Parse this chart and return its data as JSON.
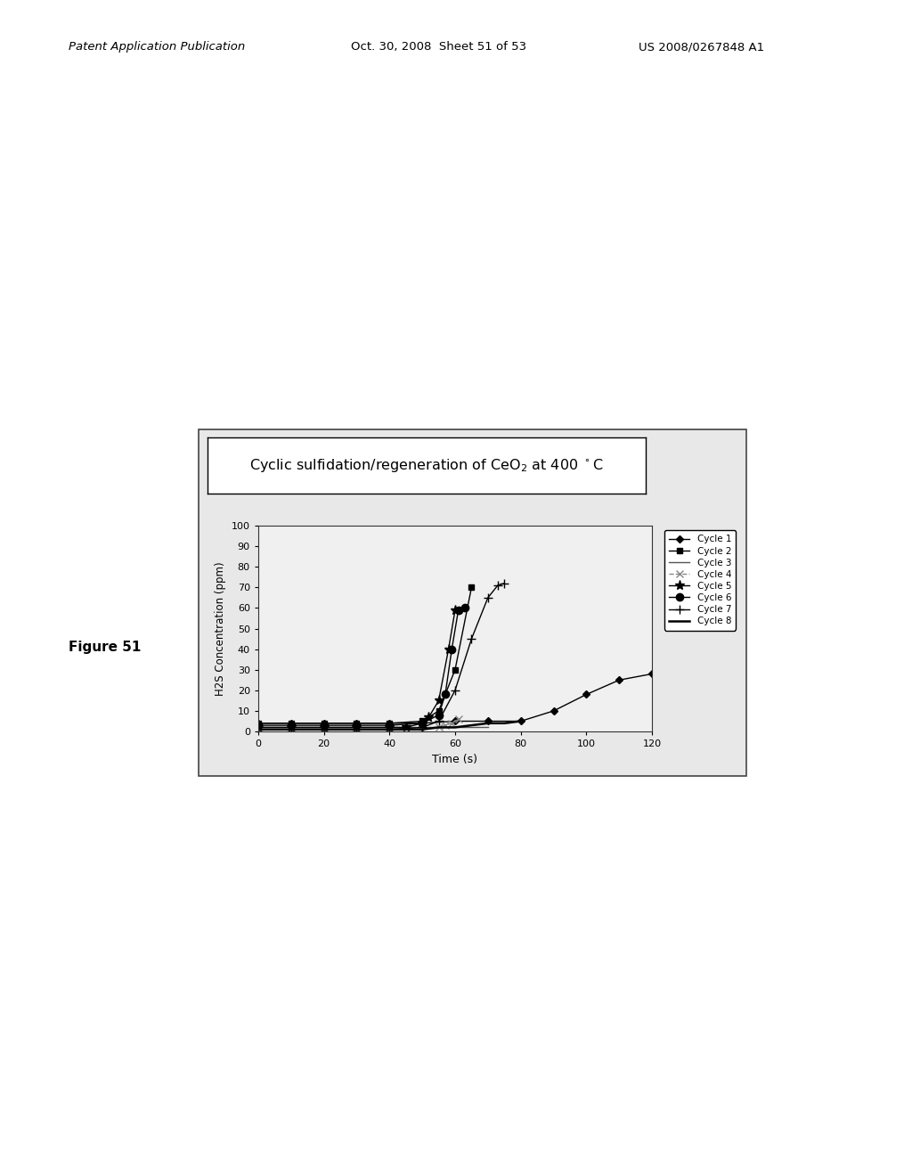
{
  "header_left": "Patent Application Publication",
  "header_center": "Oct. 30, 2008  Sheet 51 of 53",
  "header_right": "US 2008/0267848 A1",
  "figure_label": "Figure 51",
  "title": "Cyclic sulfidation/regeneration of CeO$_2$ at 400 $^\\circ$C",
  "xlabel": "Time (s)",
  "ylabel": "H2S Concentration (ppm)",
  "xlim": [
    0,
    120
  ],
  "ylim": [
    0,
    100
  ],
  "xticks": [
    0,
    20,
    40,
    60,
    80,
    100,
    120
  ],
  "yticks": [
    0,
    10,
    20,
    30,
    40,
    50,
    60,
    70,
    80,
    90,
    100
  ],
  "cycles": {
    "Cycle 1": {
      "x": [
        0,
        10,
        20,
        30,
        40,
        50,
        60,
        70,
        80,
        90,
        100,
        110,
        120
      ],
      "y": [
        4,
        4,
        4,
        4,
        4,
        4,
        5,
        5,
        5,
        10,
        18,
        25,
        28
      ],
      "color": "#000000",
      "marker": "D",
      "markersize": 4,
      "linestyle": "-",
      "linewidth": 1.0
    },
    "Cycle 2": {
      "x": [
        0,
        10,
        20,
        30,
        40,
        50,
        55,
        60,
        65
      ],
      "y": [
        4,
        4,
        4,
        4,
        4,
        5,
        10,
        30,
        70
      ],
      "color": "#000000",
      "marker": "s",
      "markersize": 5,
      "linestyle": "-",
      "linewidth": 1.0
    },
    "Cycle 3": {
      "x": [
        0,
        10,
        20,
        30,
        40,
        50,
        55,
        60,
        65,
        70
      ],
      "y": [
        2,
        2,
        2,
        2,
        2,
        2,
        2,
        2,
        2,
        2
      ],
      "color": "#555555",
      "marker": "None",
      "markersize": 0,
      "linestyle": "-",
      "linewidth": 1.0
    },
    "Cycle 4": {
      "x": [
        0,
        10,
        20,
        30,
        40,
        50,
        55,
        57,
        59,
        61
      ],
      "y": [
        1,
        1,
        1,
        1,
        1,
        1,
        2,
        3,
        4,
        6
      ],
      "color": "#888888",
      "marker": "x",
      "markersize": 6,
      "linestyle": "--",
      "linewidth": 1.0
    },
    "Cycle 5": {
      "x": [
        0,
        10,
        20,
        30,
        40,
        45,
        50,
        52,
        55,
        58,
        60
      ],
      "y": [
        2,
        2,
        2,
        2,
        2,
        2,
        4,
        7,
        15,
        40,
        59
      ],
      "color": "#000000",
      "marker": "*",
      "markersize": 8,
      "linestyle": "-",
      "linewidth": 1.0
    },
    "Cycle 6": {
      "x": [
        0,
        10,
        20,
        30,
        40,
        50,
        55,
        57,
        59,
        61,
        63
      ],
      "y": [
        3,
        3,
        3,
        3,
        3,
        4,
        8,
        18,
        40,
        59,
        60
      ],
      "color": "#000000",
      "marker": "o",
      "markersize": 6,
      "linestyle": "-",
      "linewidth": 1.0
    },
    "Cycle 7": {
      "x": [
        0,
        10,
        20,
        30,
        40,
        50,
        55,
        60,
        65,
        70,
        73,
        75
      ],
      "y": [
        1,
        1,
        1,
        1,
        1,
        2,
        5,
        20,
        45,
        65,
        71,
        72
      ],
      "color": "#000000",
      "marker": "+",
      "markersize": 7,
      "linestyle": "-",
      "linewidth": 1.0
    },
    "Cycle 8": {
      "x": [
        0,
        10,
        20,
        30,
        40,
        50,
        55,
        60,
        65,
        70,
        75,
        80
      ],
      "y": [
        1,
        1,
        1,
        1,
        1,
        1,
        2,
        2,
        3,
        4,
        4,
        5
      ],
      "color": "#000000",
      "marker": "None",
      "markersize": 0,
      "linestyle": "-",
      "linewidth": 1.8
    }
  }
}
